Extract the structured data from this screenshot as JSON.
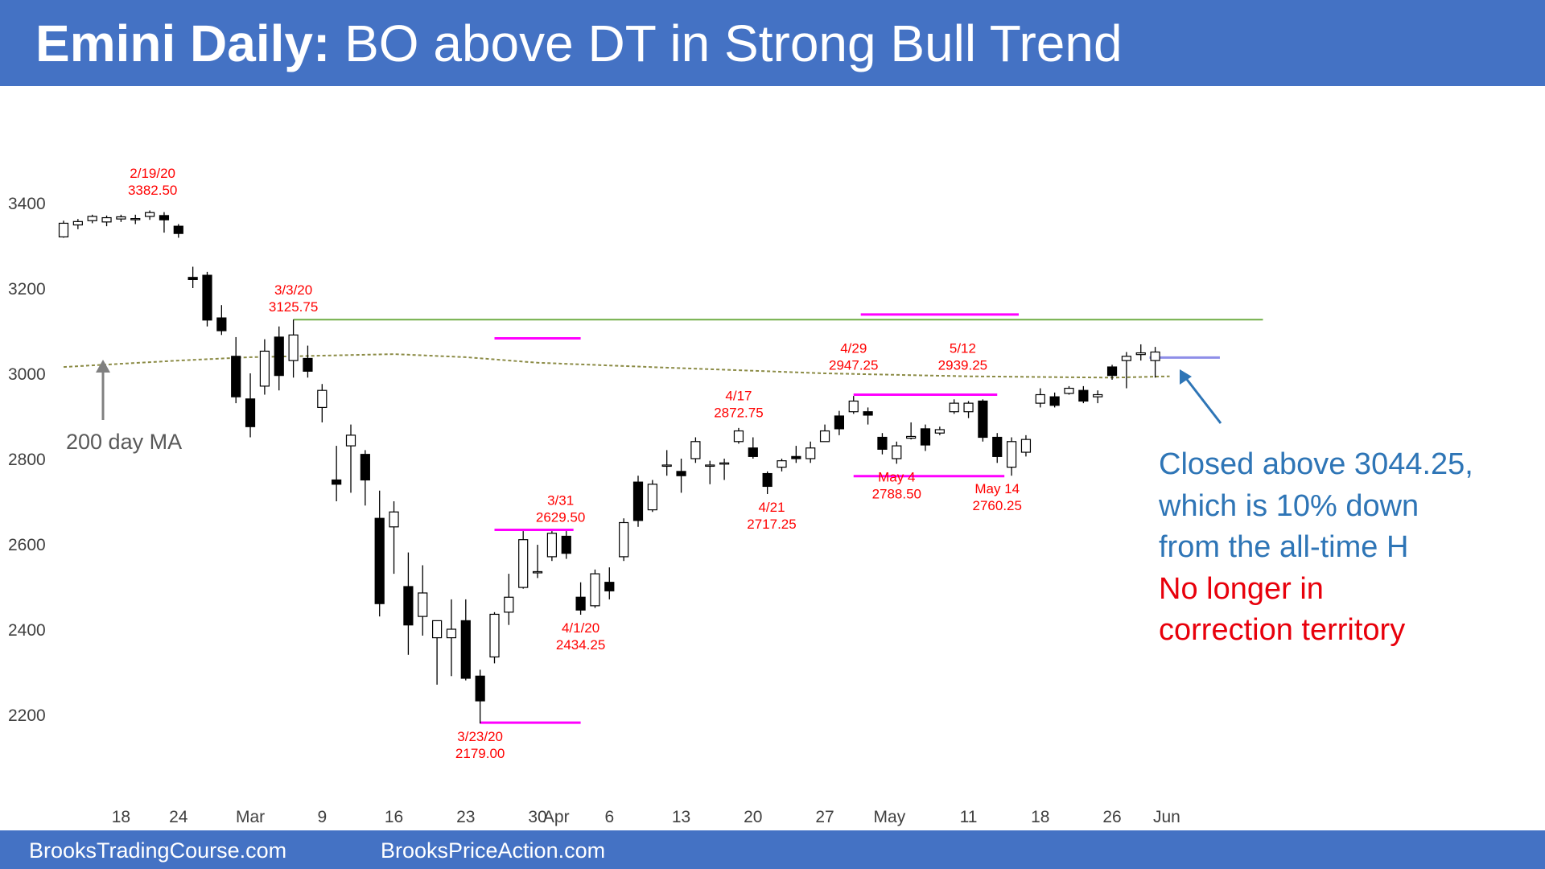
{
  "title": {
    "bold": "Emini Daily:",
    "rest": " BO above DT in Strong Bull Trend"
  },
  "footer": {
    "left": "BrooksTradingCourse.com",
    "right": "BrooksPriceAction.com"
  },
  "note": {
    "blue_lines": [
      "Closed above 3044.25,",
      "which is 10% down",
      "from the all-time H"
    ],
    "red_lines": [
      "No longer in",
      "correction territory"
    ]
  },
  "ma_label": "200 day MA",
  "colors": {
    "header": "#4472C4",
    "annotation": "#FF0000",
    "ma": "#8B8B45",
    "resistance": "#70AD47",
    "range": "#FF00FF",
    "recent_range": "#8E8EE8",
    "note_blue": "#2E75B6",
    "note_red": "#E8000B"
  },
  "chart_data": {
    "type": "candlestick",
    "title": "Emini Daily: BO above DT in Strong Bull Trend",
    "yticks": [
      3400,
      3200,
      3000,
      2800,
      2600,
      2400,
      2200
    ],
    "ylim": [
      2080,
      3580
    ],
    "xticks": [
      {
        "label": "18",
        "i": 4
      },
      {
        "label": "24",
        "i": 8
      },
      {
        "label": "Mar",
        "i": 13
      },
      {
        "label": "9",
        "i": 18
      },
      {
        "label": "16",
        "i": 23
      },
      {
        "label": "23",
        "i": 28
      },
      {
        "label": "30",
        "i": 33
      },
      {
        "label": "Apr",
        "i": 34.3
      },
      {
        "label": "6",
        "i": 38
      },
      {
        "label": "13",
        "i": 43
      },
      {
        "label": "20",
        "i": 48
      },
      {
        "label": "27",
        "i": 53
      },
      {
        "label": "May",
        "i": 57.5
      },
      {
        "label": "11",
        "i": 63
      },
      {
        "label": "18",
        "i": 68
      },
      {
        "label": "26",
        "i": 73
      },
      {
        "label": "Jun",
        "i": 76.8
      }
    ],
    "candles": [
      {
        "o": 3320,
        "h": 3358,
        "l": 3318,
        "c": 3352
      },
      {
        "o": 3348,
        "h": 3362,
        "l": 3338,
        "c": 3356
      },
      {
        "o": 3358,
        "h": 3372,
        "l": 3352,
        "c": 3368
      },
      {
        "o": 3355,
        "h": 3370,
        "l": 3345,
        "c": 3365
      },
      {
        "o": 3362,
        "h": 3372,
        "l": 3355,
        "c": 3367
      },
      {
        "o": 3363,
        "h": 3372,
        "l": 3350,
        "c": 3363
      },
      {
        "o": 3368,
        "h": 3382,
        "l": 3360,
        "c": 3377
      },
      {
        "o": 3370,
        "h": 3378,
        "l": 3330,
        "c": 3360
      },
      {
        "o": 3345,
        "h": 3350,
        "l": 3318,
        "c": 3328
      },
      {
        "o": 3225,
        "h": 3250,
        "l": 3200,
        "c": 3220
      },
      {
        "o": 3230,
        "h": 3238,
        "l": 3110,
        "c": 3125
      },
      {
        "o": 3130,
        "h": 3160,
        "l": 3090,
        "c": 3100
      },
      {
        "o": 3040,
        "h": 3085,
        "l": 2930,
        "c": 2945
      },
      {
        "o": 2940,
        "h": 3000,
        "l": 2850,
        "c": 2875
      },
      {
        "o": 2970,
        "h": 3080,
        "l": 2950,
        "c": 3052
      },
      {
        "o": 3085,
        "h": 3110,
        "l": 2960,
        "c": 2995
      },
      {
        "o": 3030,
        "h": 3126,
        "l": 2990,
        "c": 3090
      },
      {
        "o": 3035,
        "h": 3065,
        "l": 2990,
        "c": 3005
      },
      {
        "o": 2920,
        "h": 2975,
        "l": 2885,
        "c": 2960
      },
      {
        "o": 2750,
        "h": 2830,
        "l": 2700,
        "c": 2740
      },
      {
        "o": 2830,
        "h": 2880,
        "l": 2720,
        "c": 2855
      },
      {
        "o": 2810,
        "h": 2820,
        "l": 2690,
        "c": 2750
      },
      {
        "o": 2660,
        "h": 2725,
        "l": 2430,
        "c": 2460
      },
      {
        "o": 2640,
        "h": 2700,
        "l": 2530,
        "c": 2675
      },
      {
        "o": 2500,
        "h": 2580,
        "l": 2340,
        "c": 2410
      },
      {
        "o": 2430,
        "h": 2550,
        "l": 2385,
        "c": 2485
      },
      {
        "o": 2380,
        "h": 2420,
        "l": 2270,
        "c": 2420
      },
      {
        "o": 2380,
        "h": 2470,
        "l": 2290,
        "c": 2400
      },
      {
        "o": 2420,
        "h": 2470,
        "l": 2280,
        "c": 2285
      },
      {
        "o": 2290,
        "h": 2305,
        "l": 2179,
        "c": 2232
      },
      {
        "o": 2335,
        "h": 2440,
        "l": 2320,
        "c": 2435
      },
      {
        "o": 2440,
        "h": 2530,
        "l": 2410,
        "c": 2475
      },
      {
        "o": 2498,
        "h": 2630,
        "l": 2495,
        "c": 2610
      },
      {
        "o": 2535,
        "h": 2598,
        "l": 2520,
        "c": 2535
      },
      {
        "o": 2570,
        "h": 2630,
        "l": 2560,
        "c": 2625
      },
      {
        "o": 2618,
        "h": 2630,
        "l": 2565,
        "c": 2578
      },
      {
        "o": 2475,
        "h": 2510,
        "l": 2434,
        "c": 2445
      },
      {
        "o": 2455,
        "h": 2540,
        "l": 2450,
        "c": 2530
      },
      {
        "o": 2510,
        "h": 2545,
        "l": 2470,
        "c": 2490
      },
      {
        "o": 2570,
        "h": 2660,
        "l": 2560,
        "c": 2650
      },
      {
        "o": 2745,
        "h": 2760,
        "l": 2640,
        "c": 2655
      },
      {
        "o": 2680,
        "h": 2750,
        "l": 2675,
        "c": 2740
      },
      {
        "o": 2785,
        "h": 2820,
        "l": 2760,
        "c": 2785
      },
      {
        "o": 2770,
        "h": 2800,
        "l": 2720,
        "c": 2760
      },
      {
        "o": 2800,
        "h": 2850,
        "l": 2790,
        "c": 2840
      },
      {
        "o": 2785,
        "h": 2795,
        "l": 2740,
        "c": 2785
      },
      {
        "o": 2790,
        "h": 2800,
        "l": 2750,
        "c": 2790
      },
      {
        "o": 2840,
        "h": 2872,
        "l": 2835,
        "c": 2865
      },
      {
        "o": 2825,
        "h": 2850,
        "l": 2800,
        "c": 2805
      },
      {
        "o": 2765,
        "h": 2770,
        "l": 2717,
        "c": 2735
      },
      {
        "o": 2780,
        "h": 2800,
        "l": 2770,
        "c": 2795
      },
      {
        "o": 2805,
        "h": 2830,
        "l": 2790,
        "c": 2800
      },
      {
        "o": 2800,
        "h": 2840,
        "l": 2790,
        "c": 2825
      },
      {
        "o": 2840,
        "h": 2880,
        "l": 2840,
        "c": 2865
      },
      {
        "o": 2900,
        "h": 2912,
        "l": 2855,
        "c": 2870
      },
      {
        "o": 2910,
        "h": 2947,
        "l": 2905,
        "c": 2935
      },
      {
        "o": 2910,
        "h": 2920,
        "l": 2880,
        "c": 2902
      },
      {
        "o": 2850,
        "h": 2860,
        "l": 2810,
        "c": 2822
      },
      {
        "o": 2800,
        "h": 2840,
        "l": 2788,
        "c": 2830
      },
      {
        "o": 2848,
        "h": 2885,
        "l": 2845,
        "c": 2852
      },
      {
        "o": 2870,
        "h": 2880,
        "l": 2818,
        "c": 2832
      },
      {
        "o": 2860,
        "h": 2875,
        "l": 2855,
        "c": 2868
      },
      {
        "o": 2910,
        "h": 2939,
        "l": 2905,
        "c": 2930
      },
      {
        "o": 2910,
        "h": 2935,
        "l": 2895,
        "c": 2930
      },
      {
        "o": 2935,
        "h": 2939,
        "l": 2840,
        "c": 2850
      },
      {
        "o": 2850,
        "h": 2860,
        "l": 2790,
        "c": 2805
      },
      {
        "o": 2780,
        "h": 2850,
        "l": 2760,
        "c": 2840
      },
      {
        "o": 2815,
        "h": 2855,
        "l": 2805,
        "c": 2845
      },
      {
        "o": 2930,
        "h": 2965,
        "l": 2920,
        "c": 2950
      },
      {
        "o": 2945,
        "h": 2955,
        "l": 2920,
        "c": 2925
      },
      {
        "o": 2953,
        "h": 2970,
        "l": 2950,
        "c": 2965
      },
      {
        "o": 2960,
        "h": 2970,
        "l": 2930,
        "c": 2935
      },
      {
        "o": 2945,
        "h": 2960,
        "l": 2930,
        "c": 2950
      },
      {
        "o": 3015,
        "h": 3020,
        "l": 2985,
        "c": 2995
      },
      {
        "o": 3030,
        "h": 3050,
        "l": 2965,
        "c": 3040
      },
      {
        "o": 3044,
        "h": 3068,
        "l": 3030,
        "c": 3048
      },
      {
        "o": 3030,
        "h": 3062,
        "l": 2990,
        "c": 3050
      }
    ],
    "ma200": [
      [
        0,
        3015
      ],
      [
        8,
        3030
      ],
      [
        13,
        3038
      ],
      [
        23,
        3045
      ],
      [
        28,
        3038
      ],
      [
        33,
        3025
      ],
      [
        43,
        3012
      ],
      [
        53,
        3000
      ],
      [
        63,
        2993
      ],
      [
        73,
        2990
      ],
      [
        77,
        2993
      ]
    ],
    "lines": [
      {
        "kind": "resistance",
        "y": 3126,
        "i0": 16,
        "i1": 83.5
      },
      {
        "kind": "range",
        "y": 3082,
        "i0": 30,
        "i1": 36
      },
      {
        "kind": "range",
        "y": 3138,
        "i0": 55.5,
        "i1": 66.5
      },
      {
        "kind": "range",
        "y": 2950,
        "i0": 55,
        "i1": 65
      },
      {
        "kind": "range",
        "y": 2759,
        "i0": 55,
        "i1": 65.5
      },
      {
        "kind": "range",
        "y": 2633,
        "i0": 30,
        "i1": 35.5
      },
      {
        "kind": "range",
        "y": 2181,
        "i0": 29,
        "i1": 36
      },
      {
        "kind": "recent_range",
        "y": 3037,
        "i0": 75.6,
        "i1": 80.5
      }
    ],
    "annotations": [
      {
        "lines": [
          "2/19/20",
          "3382.50"
        ],
        "i": 6.2,
        "y": 3400,
        "pos": "above"
      },
      {
        "lines": [
          "3/3/20",
          "3125.75"
        ],
        "i": 16,
        "y": 3126,
        "pos": "above"
      },
      {
        "lines": [
          "3/31",
          "2629.50"
        ],
        "i": 34.6,
        "y": 2633,
        "pos": "above"
      },
      {
        "lines": [
          "4/1/20",
          "2434.25"
        ],
        "i": 36,
        "y": 2434,
        "pos": "below"
      },
      {
        "lines": [
          "3/23/20",
          "2179.00"
        ],
        "i": 29,
        "y": 2179,
        "pos": "below"
      },
      {
        "lines": [
          "4/17",
          "2872.75"
        ],
        "i": 47,
        "y": 2878,
        "pos": "above"
      },
      {
        "lines": [
          "4/21",
          "2717.25"
        ],
        "i": 49.3,
        "y": 2717,
        "pos": "below"
      },
      {
        "lines": [
          "4/29",
          "2947.25"
        ],
        "i": 55,
        "y": 2990,
        "pos": "above"
      },
      {
        "lines": [
          "5/12",
          "2939.25"
        ],
        "i": 62.6,
        "y": 2990,
        "pos": "above"
      },
      {
        "lines": [
          "May 4",
          "2788.50"
        ],
        "i": 58,
        "y": 2788,
        "pos": "below"
      },
      {
        "lines": [
          "May 14",
          "2760.25"
        ],
        "i": 65,
        "y": 2760,
        "pos": "below"
      }
    ]
  }
}
